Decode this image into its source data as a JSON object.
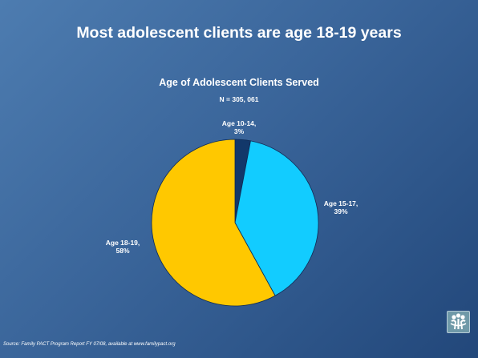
{
  "slide": {
    "title": "Most adolescent clients are age 18-19 years",
    "source": "Source: Family PACT Program Report FY 07/08, available at www.familypact.org"
  },
  "chart_data": {
    "type": "pie",
    "title": "Age of Adolescent Clients Served",
    "subtitle": "N = 305, 061",
    "categories": [
      "Age 10-14",
      "Age 15-17",
      "Age 18-19"
    ],
    "values": [
      3,
      39,
      58
    ],
    "unit": "%",
    "labels": [
      "Age 10-14,\n3%",
      "Age 15-17,\n39%",
      "Age 18-19,\n58%"
    ],
    "colors": [
      "#12386a",
      "#12ccff",
      "#ffc800"
    ],
    "legend": "none"
  },
  "icons": {
    "logo": "family-figures-logo-icon"
  }
}
